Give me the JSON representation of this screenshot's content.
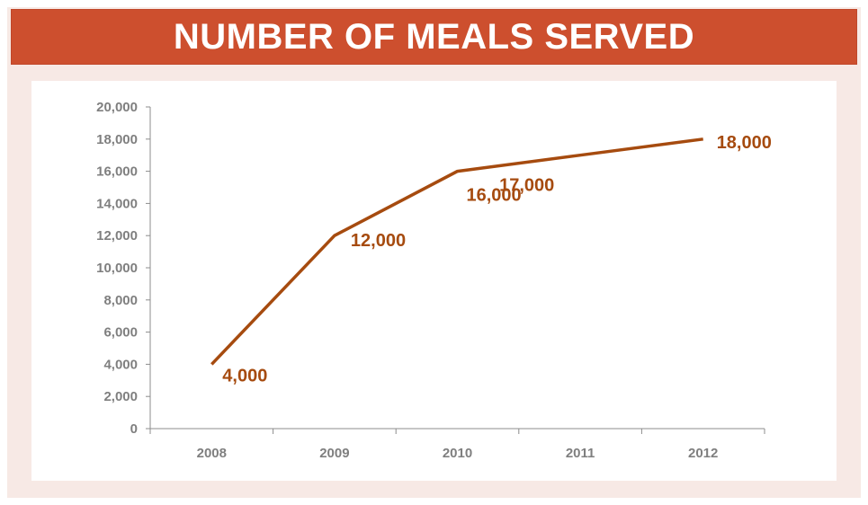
{
  "header": {
    "title": "NUMBER OF MEALS SERVED"
  },
  "colors": {
    "banner": "#cd4f2e",
    "frame": "#f7e9e5",
    "series": "#a64b0f",
    "tick_text": "#7f7f7f",
    "axis": "#8c8c8c"
  },
  "chart_data": {
    "type": "line",
    "title": "NUMBER OF MEALS SERVED",
    "xlabel": "",
    "ylabel": "",
    "categories": [
      "2008",
      "2009",
      "2010",
      "2011",
      "2012"
    ],
    "series": [
      {
        "values": [
          4000,
          12000,
          16000,
          17000,
          18000
        ],
        "labels": [
          "4,000",
          "12,000",
          "16,000",
          "17,000",
          "18,000"
        ]
      }
    ],
    "ylim": [
      0,
      20000
    ],
    "y_ticks": [
      0,
      2000,
      4000,
      6000,
      8000,
      10000,
      12000,
      14000,
      16000,
      18000,
      20000
    ],
    "y_tick_labels": [
      "0",
      "2,000",
      "4,000",
      "6,000",
      "8,000",
      "10,000",
      "12,000",
      "14,000",
      "16,000",
      "18,000",
      "20,000"
    ],
    "grid": false,
    "legend": "none"
  }
}
